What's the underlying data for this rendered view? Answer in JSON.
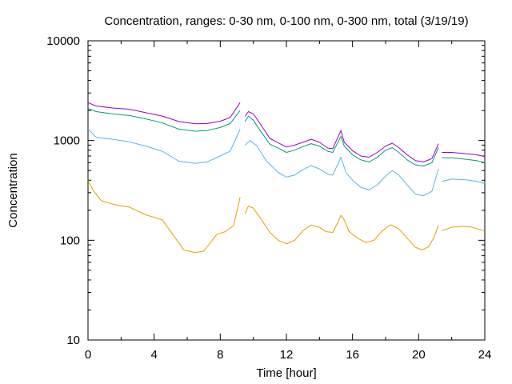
{
  "chart_data": {
    "type": "line",
    "title": "Concentration, ranges: 0-30 nm, 0-100 nm, 0-300 nm, total (3/19/19)",
    "xlabel": "Time [hour]",
    "ylabel": "Concentration",
    "xlim": [
      0,
      24
    ],
    "ylim": [
      10,
      10000
    ],
    "yscale": "log",
    "grid": false,
    "legend": "none",
    "xticks": [
      0,
      4,
      8,
      12,
      16,
      20,
      24
    ],
    "xtick_labels": [
      "0",
      "4",
      "8",
      "12",
      "16",
      "20",
      "24"
    ],
    "yticks": [
      10,
      100,
      1000,
      10000
    ],
    "ytick_labels": [
      "10",
      "100",
      "1000",
      "10000"
    ],
    "series": [
      {
        "color": "#e69f00",
        "segments": [
          [
            [
              0,
              400
            ],
            [
              0.3,
              320
            ],
            [
              0.8,
              250
            ],
            [
              1.5,
              230
            ],
            [
              2.5,
              215
            ],
            [
              3.5,
              180
            ],
            [
              4.5,
              160
            ],
            [
              5.2,
              110
            ],
            [
              5.8,
              80
            ],
            [
              6.5,
              75
            ],
            [
              7,
              78
            ],
            [
              7.3,
              90
            ],
            [
              7.8,
              115
            ],
            [
              8.3,
              122
            ],
            [
              8.8,
              140
            ],
            [
              9.2,
              270
            ]
          ],
          [
            [
              9.5,
              185
            ],
            [
              9.7,
              220
            ],
            [
              10,
              210
            ],
            [
              10.5,
              160
            ],
            [
              11,
              120
            ],
            [
              11.5,
              100
            ],
            [
              12,
              92
            ],
            [
              12.5,
              100
            ],
            [
              13,
              125
            ],
            [
              13.5,
              142
            ],
            [
              14,
              135
            ],
            [
              14.4,
              122
            ],
            [
              14.8,
              120
            ],
            [
              15.1,
              150
            ],
            [
              15.3,
              178
            ],
            [
              15.5,
              160
            ],
            [
              15.8,
              122
            ],
            [
              16.3,
              105
            ],
            [
              16.8,
              95
            ],
            [
              17.3,
              100
            ],
            [
              17.8,
              125
            ],
            [
              18.3,
              143
            ],
            [
              18.8,
              130
            ],
            [
              19.3,
              105
            ],
            [
              19.8,
              85
            ],
            [
              20.2,
              80
            ],
            [
              20.6,
              86
            ],
            [
              20.9,
              105
            ],
            [
              21.2,
              140
            ]
          ],
          [
            [
              21.4,
              125
            ],
            [
              22,
              135
            ],
            [
              22.6,
              138
            ],
            [
              23.2,
              136
            ],
            [
              24,
              124
            ]
          ]
        ]
      },
      {
        "color": "#56b4e9",
        "segments": [
          [
            [
              0,
              1300
            ],
            [
              0.5,
              1080
            ],
            [
              1.5,
              1030
            ],
            [
              2.5,
              970
            ],
            [
              3.5,
              880
            ],
            [
              4.5,
              780
            ],
            [
              5.5,
              620
            ],
            [
              6.5,
              590
            ],
            [
              7.2,
              610
            ],
            [
              8,
              700
            ],
            [
              8.6,
              780
            ],
            [
              9.2,
              1300
            ]
          ],
          [
            [
              9.5,
              900
            ],
            [
              9.8,
              1000
            ],
            [
              10.2,
              890
            ],
            [
              10.8,
              620
            ],
            [
              11.5,
              480
            ],
            [
              12,
              430
            ],
            [
              12.5,
              450
            ],
            [
              13,
              510
            ],
            [
              13.5,
              560
            ],
            [
              14,
              520
            ],
            [
              14.5,
              460
            ],
            [
              14.8,
              450
            ],
            [
              15.3,
              680
            ],
            [
              15.6,
              480
            ],
            [
              16,
              400
            ],
            [
              16.5,
              340
            ],
            [
              17,
              320
            ],
            [
              17.5,
              360
            ],
            [
              18,
              440
            ],
            [
              18.4,
              500
            ],
            [
              18.8,
              450
            ],
            [
              19.3,
              360
            ],
            [
              19.8,
              290
            ],
            [
              20.3,
              280
            ],
            [
              20.8,
              310
            ],
            [
              21.2,
              520
            ]
          ],
          [
            [
              21.4,
              390
            ],
            [
              22,
              410
            ],
            [
              22.8,
              405
            ],
            [
              23.5,
              390
            ],
            [
              24,
              370
            ]
          ]
        ]
      },
      {
        "color": "#009e73",
        "segments": [
          [
            [
              0,
              2100
            ],
            [
              0.5,
              1950
            ],
            [
              1.5,
              1850
            ],
            [
              2.5,
              1780
            ],
            [
              3.5,
              1650
            ],
            [
              4.5,
              1500
            ],
            [
              5.5,
              1300
            ],
            [
              6.5,
              1240
            ],
            [
              7.2,
              1260
            ],
            [
              8,
              1350
            ],
            [
              8.6,
              1480
            ],
            [
              9.2,
              2000
            ]
          ],
          [
            [
              9.5,
              1550
            ],
            [
              9.7,
              1750
            ],
            [
              10,
              1600
            ],
            [
              10.5,
              1200
            ],
            [
              11,
              920
            ],
            [
              11.5,
              840
            ],
            [
              12,
              760
            ],
            [
              12.5,
              800
            ],
            [
              13,
              870
            ],
            [
              13.5,
              930
            ],
            [
              14,
              880
            ],
            [
              14.5,
              780
            ],
            [
              14.8,
              760
            ],
            [
              15.3,
              1100
            ],
            [
              15.5,
              880
            ],
            [
              16,
              720
            ],
            [
              16.5,
              640
            ],
            [
              17,
              610
            ],
            [
              17.5,
              680
            ],
            [
              18,
              800
            ],
            [
              18.4,
              850
            ],
            [
              18.8,
              760
            ],
            [
              19.3,
              640
            ],
            [
              19.8,
              570
            ],
            [
              20.3,
              555
            ],
            [
              20.8,
              600
            ],
            [
              21.2,
              850
            ]
          ],
          [
            [
              21.4,
              670
            ],
            [
              22,
              670
            ],
            [
              22.8,
              650
            ],
            [
              23.5,
              630
            ],
            [
              24,
              600
            ]
          ]
        ]
      },
      {
        "color": "#9400d3",
        "segments": [
          [
            [
              0,
              2400
            ],
            [
              0.5,
              2220
            ],
            [
              1.5,
              2120
            ],
            [
              2.5,
              2060
            ],
            [
              3.5,
              1900
            ],
            [
              4.5,
              1760
            ],
            [
              5.5,
              1550
            ],
            [
              6.5,
              1470
            ],
            [
              7.2,
              1480
            ],
            [
              8,
              1560
            ],
            [
              8.6,
              1700
            ],
            [
              9.2,
              2400
            ]
          ],
          [
            [
              9.5,
              1750
            ],
            [
              9.7,
              1950
            ],
            [
              10,
              1850
            ],
            [
              10.5,
              1400
            ],
            [
              11,
              1050
            ],
            [
              11.5,
              950
            ],
            [
              12,
              860
            ],
            [
              12.5,
              900
            ],
            [
              13,
              960
            ],
            [
              13.5,
              1030
            ],
            [
              14,
              960
            ],
            [
              14.5,
              840
            ],
            [
              14.8,
              830
            ],
            [
              15.3,
              1260
            ],
            [
              15.5,
              960
            ],
            [
              16,
              790
            ],
            [
              16.5,
              700
            ],
            [
              17,
              680
            ],
            [
              17.5,
              760
            ],
            [
              18,
              880
            ],
            [
              18.4,
              940
            ],
            [
              18.8,
              850
            ],
            [
              19.3,
              720
            ],
            [
              19.8,
              630
            ],
            [
              20.3,
              610
            ],
            [
              20.8,
              660
            ],
            [
              21.2,
              930
            ]
          ],
          [
            [
              21.4,
              760
            ],
            [
              22,
              760
            ],
            [
              22.8,
              740
            ],
            [
              23.5,
              720
            ],
            [
              24,
              690
            ]
          ]
        ]
      }
    ]
  }
}
